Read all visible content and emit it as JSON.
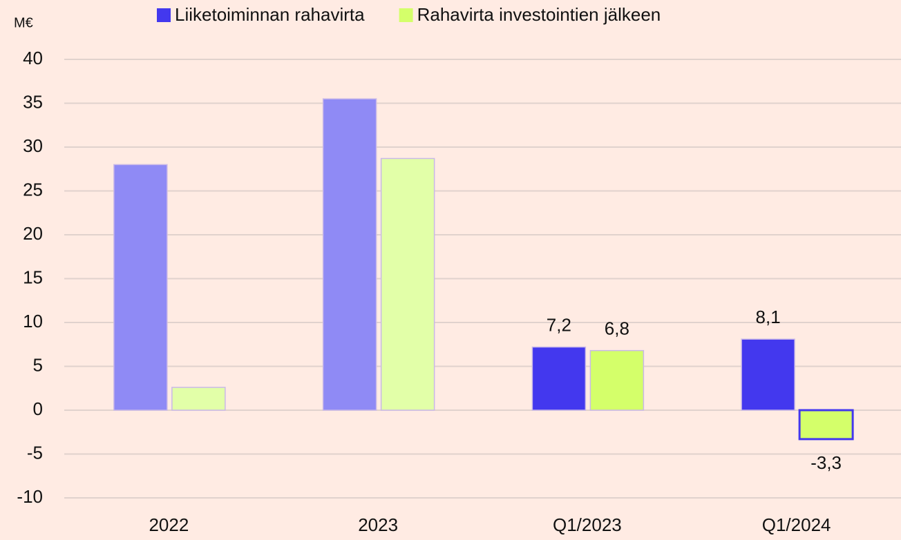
{
  "chart_data": {
    "type": "bar",
    "unit_label": "M€",
    "categories": [
      "2022",
      "2023",
      "Q1/2023",
      "Q1/2024"
    ],
    "series": [
      {
        "name": "Liiketoiminnan rahavirta",
        "color": "#4338ee",
        "colors": [
          "#8f8af5",
          "#8f8af5",
          "#4338ee",
          "#4338ee"
        ],
        "values": [
          28.0,
          35.5,
          7.2,
          8.1
        ],
        "value_labels": [
          null,
          null,
          "7,2",
          "8,1"
        ]
      },
      {
        "name": "Rahavirta investointien jälkeen",
        "color": "#d4ff6a",
        "colors": [
          "#e2ffa8",
          "#e2ffa8",
          "#d4ff6a",
          "#d4ff6a"
        ],
        "values": [
          2.6,
          28.7,
          6.8,
          -3.3
        ],
        "value_labels": [
          null,
          null,
          "6,8",
          "-3,3"
        ]
      }
    ],
    "ylim": [
      -10,
      40
    ],
    "yticks": [
      -10,
      -5,
      0,
      5,
      10,
      15,
      20,
      25,
      30,
      35,
      40
    ],
    "grid": true,
    "legend": "top"
  }
}
